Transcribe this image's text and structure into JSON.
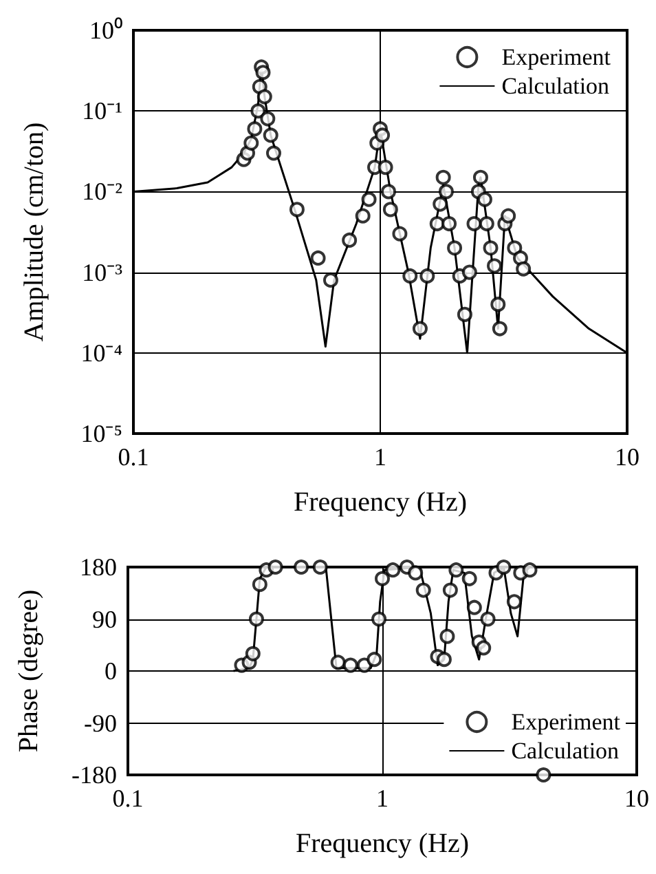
{
  "chart_data": [
    {
      "type": "line",
      "xlabel": "Frequency (Hz)",
      "ylabel": "Amplitude (cm/ton)",
      "log": "xy",
      "grid": true,
      "legend": "top right",
      "xlim": [
        0.1,
        10
      ],
      "xticks": [
        0.1,
        1,
        10
      ],
      "ylim": [
        1e-05,
        1
      ],
      "yticks": [
        {
          "value": 1e-05,
          "label": "10⁻⁵"
        },
        {
          "value": 0.0001,
          "label": "10⁻⁴"
        },
        {
          "value": 0.001,
          "label": "10⁻³"
        },
        {
          "value": 0.01,
          "label": "10⁻²"
        },
        {
          "value": 0.1,
          "label": "10⁻¹"
        },
        {
          "value": 1,
          "label": "10⁰"
        }
      ],
      "series": [
        {
          "name": "Experiment",
          "type": "scatter",
          "marker": "circle",
          "color": "#000000",
          "x": [
            0.28,
            0.29,
            0.3,
            0.31,
            0.32,
            0.325,
            0.33,
            0.335,
            0.34,
            0.35,
            0.36,
            0.37,
            0.46,
            0.56,
            0.63,
            0.75,
            0.85,
            0.9,
            0.95,
            0.97,
            1.0,
            1.02,
            1.05,
            1.08,
            1.1,
            1.2,
            1.32,
            1.45,
            1.55,
            1.7,
            1.75,
            1.8,
            1.85,
            1.9,
            2.0,
            2.1,
            2.2,
            2.3,
            2.4,
            2.5,
            2.55,
            2.65,
            2.7,
            2.8,
            2.9,
            3.0,
            3.05,
            3.2,
            3.3,
            3.5,
            3.7,
            3.8
          ],
          "values": [
            0.025,
            0.03,
            0.04,
            0.06,
            0.1,
            0.2,
            0.35,
            0.3,
            0.15,
            0.08,
            0.05,
            0.03,
            0.006,
            0.0015,
            0.0008,
            0.0025,
            0.005,
            0.008,
            0.02,
            0.04,
            0.06,
            0.05,
            0.02,
            0.01,
            0.006,
            0.003,
            0.0009,
            0.0002,
            0.0009,
            0.004,
            0.007,
            0.015,
            0.01,
            0.004,
            0.002,
            0.0009,
            0.0003,
            0.001,
            0.004,
            0.01,
            0.015,
            0.008,
            0.004,
            0.002,
            0.0012,
            0.0004,
            0.0002,
            0.004,
            0.005,
            0.002,
            0.0015,
            0.0011
          ]
        },
        {
          "name": "Calculation",
          "type": "line",
          "marker": "none",
          "line_style": "solid",
          "color": "#000000",
          "x": [
            0.1,
            0.15,
            0.2,
            0.25,
            0.28,
            0.3,
            0.32,
            0.33,
            0.34,
            0.36,
            0.45,
            0.55,
            0.6,
            0.65,
            0.8,
            0.95,
            1.0,
            1.1,
            1.3,
            1.45,
            1.6,
            1.8,
            2.0,
            2.25,
            2.5,
            2.55,
            2.8,
            3.0,
            3.2,
            3.6,
            5,
            7,
            10
          ],
          "values": [
            0.01,
            0.011,
            0.013,
            0.02,
            0.03,
            0.045,
            0.12,
            0.35,
            0.15,
            0.05,
            0.006,
            0.0008,
            0.00012,
            0.0008,
            0.004,
            0.02,
            0.06,
            0.01,
            0.001,
            0.00015,
            0.002,
            0.012,
            0.002,
            0.0001,
            0.012,
            0.015,
            0.002,
            0.0002,
            0.005,
            0.0015,
            0.0005,
            0.0002,
            0.0001
          ]
        }
      ]
    },
    {
      "type": "line",
      "xlabel": "Frequency (Hz)",
      "ylabel": "Phase (degree)",
      "log": "x",
      "grid": true,
      "legend": "bottom right",
      "xlim": [
        0.1,
        10
      ],
      "xticks": [
        0.1,
        1,
        10
      ],
      "ylim": [
        -180,
        180
      ],
      "yticks": [
        -180,
        -90,
        0,
        90,
        180
      ],
      "series": [
        {
          "name": "Experiment",
          "type": "scatter",
          "marker": "circle",
          "color": "#000000",
          "x": [
            0.28,
            0.3,
            0.31,
            0.32,
            0.33,
            0.35,
            0.38,
            0.48,
            0.57,
            0.67,
            0.75,
            0.85,
            0.93,
            0.97,
            1.0,
            1.1,
            1.25,
            1.35,
            1.45,
            1.65,
            1.75,
            1.8,
            1.85,
            1.95,
            2.2,
            2.3,
            2.4,
            2.5,
            2.6,
            2.8,
            3.0,
            3.3,
            3.5,
            3.8,
            4.3
          ],
          "values": [
            10,
            15,
            30,
            90,
            150,
            175,
            180,
            180,
            180,
            15,
            10,
            10,
            20,
            90,
            160,
            175,
            180,
            170,
            140,
            25,
            20,
            60,
            140,
            175,
            160,
            110,
            50,
            40,
            90,
            170,
            180,
            120,
            170,
            175,
            -180
          ]
        },
        {
          "name": "Calculation",
          "type": "line",
          "marker": "none",
          "line_style": "solid",
          "color": "#000000",
          "x": [
            0.26,
            0.3,
            0.31,
            0.32,
            0.33,
            0.35,
            0.6,
            0.63,
            0.66,
            0.9,
            0.95,
            0.98,
            1.02,
            1.4,
            1.55,
            1.65,
            1.75,
            1.82,
            1.9,
            2.1,
            2.25,
            2.4,
            2.55,
            2.75,
            3.0,
            3.2,
            3.4,
            3.6,
            3.8
          ],
          "values": [
            0,
            5,
            20,
            90,
            160,
            180,
            180,
            90,
            5,
            5,
            30,
            120,
            175,
            180,
            100,
            10,
            20,
            120,
            175,
            170,
            60,
            20,
            90,
            170,
            180,
            100,
            60,
            170,
            180
          ]
        }
      ]
    }
  ]
}
